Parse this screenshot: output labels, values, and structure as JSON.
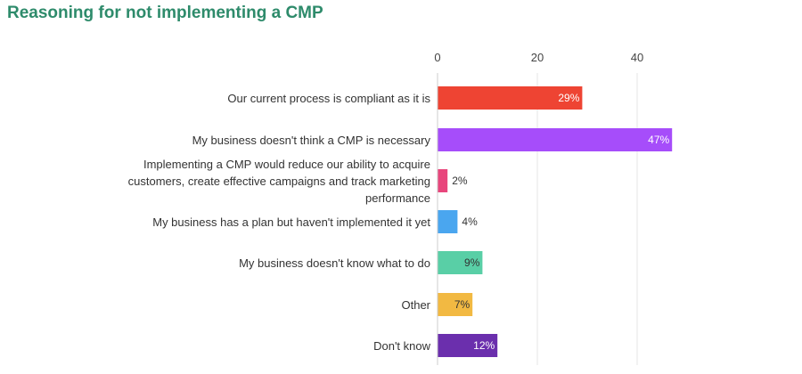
{
  "chart_data": {
    "type": "bar",
    "orientation": "horizontal",
    "title": "Reasoning for not implementing a CMP",
    "xlabel": "",
    "ylabel": "",
    "xlim": [
      0,
      47
    ],
    "x_ticks": [
      "0",
      "20",
      "40"
    ],
    "grid": true,
    "categories": [
      "Our current process is compliant as it is",
      "My business doesn't think a CMP is necessary",
      "Implementing a CMP would reduce our ability to acquire customers, create effective campaigns and track marketing performance",
      "My business has a plan but haven't implemented it yet",
      "My business doesn't know what to do",
      "Other",
      "Don't know"
    ],
    "category_lines": [
      [
        "Our current process is compliant as it is"
      ],
      [
        "My business doesn't think a CMP is necessary"
      ],
      [
        "Implementing a CMP would reduce our ability to acquire",
        "customers, create effective campaigns and track marketing",
        "performance"
      ],
      [
        "My business has a plan but haven't implemented it yet"
      ],
      [
        "My business doesn't know what to do"
      ],
      [
        "Other"
      ],
      [
        "Don't know"
      ]
    ],
    "values": [
      29,
      47,
      2,
      4,
      9,
      7,
      12
    ],
    "value_labels": [
      "29%",
      "47%",
      "2%",
      "4%",
      "9%",
      "7%",
      "12%"
    ],
    "colors": [
      "#ee4433",
      "#a64dfa",
      "#e8467c",
      "#4aa6ef",
      "#59cfa6",
      "#f2b942",
      "#6b2fad"
    ],
    "label_colors": [
      "#ffffff",
      "#ffffff",
      "#333333",
      "#333333",
      "#333333",
      "#333333",
      "#ffffff"
    ]
  }
}
